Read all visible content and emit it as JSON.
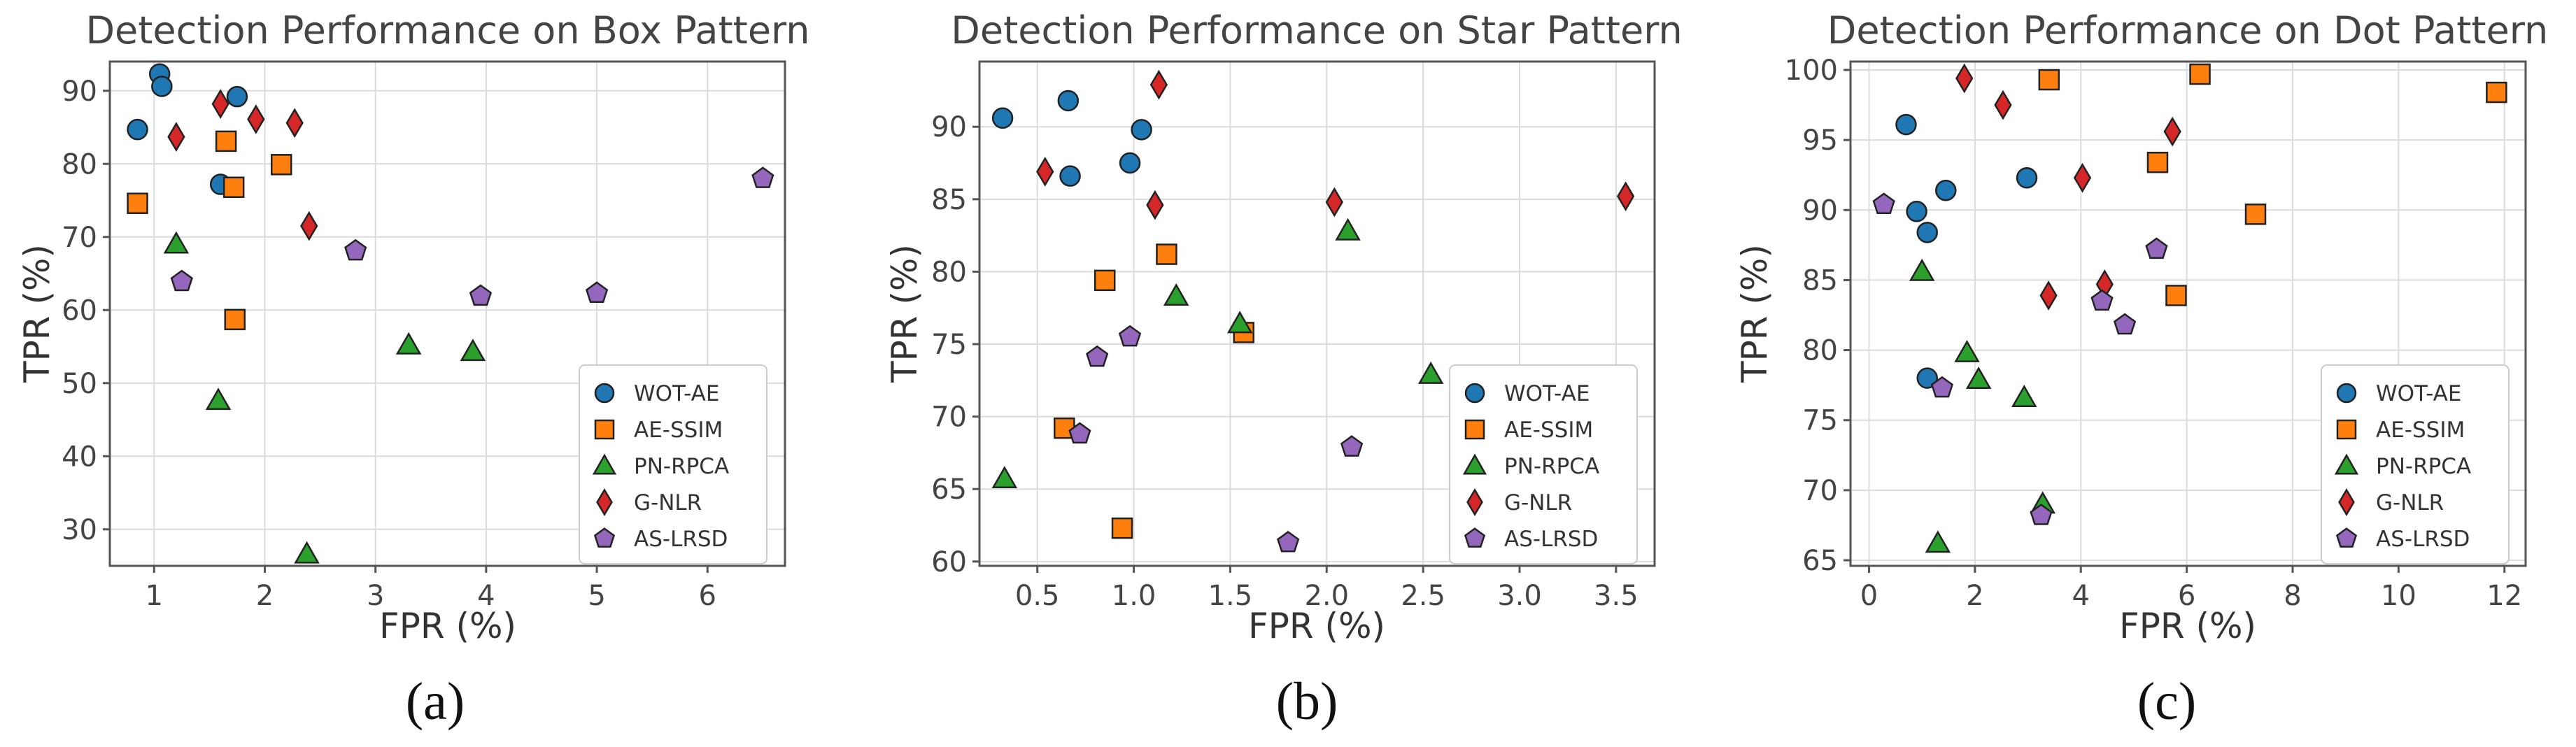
{
  "chart_data": [
    {
      "type": "scatter",
      "title": "Detection Performance on Box Pattern",
      "xlabel": "FPR (%)",
      "ylabel": "TPR (%)",
      "caption": "(a)",
      "xlim": [
        0.6,
        6.7
      ],
      "ylim": [
        25,
        94
      ],
      "xticks": [
        1,
        2,
        3,
        4,
        5,
        6
      ],
      "xtick_labels": [
        "1",
        "2",
        "3",
        "4",
        "5",
        "6"
      ],
      "yticks": [
        30,
        40,
        50,
        60,
        70,
        80,
        90
      ],
      "ytick_labels": [
        "30",
        "40",
        "50",
        "60",
        "70",
        "80",
        "90"
      ],
      "grid": true,
      "legend_position": "lower right",
      "series": [
        {
          "name": "WOT-AE",
          "color": "#1f77b4",
          "marker": "circle",
          "points": [
            [
              0.85,
              84.7
            ],
            [
              1.05,
              92.3
            ],
            [
              1.07,
              90.6
            ],
            [
              1.6,
              77.2
            ],
            [
              1.75,
              89.2
            ]
          ]
        },
        {
          "name": "AE-SSIM",
          "color": "#ff7f0e",
          "marker": "square",
          "points": [
            [
              0.85,
              74.6
            ],
            [
              1.65,
              83.1
            ],
            [
              1.72,
              76.8
            ],
            [
              2.15,
              79.9
            ],
            [
              1.73,
              58.7
            ]
          ]
        },
        {
          "name": "PN-RPCA",
          "color": "#2ca02c",
          "marker": "triangle",
          "points": [
            [
              1.2,
              69.0
            ],
            [
              1.58,
              47.6
            ],
            [
              2.38,
              26.6
            ],
            [
              3.3,
              55.2
            ],
            [
              3.88,
              54.3
            ]
          ]
        },
        {
          "name": "G-NLR",
          "color": "#d62728",
          "marker": "diamond",
          "points": [
            [
              1.2,
              83.7
            ],
            [
              1.6,
              88.2
            ],
            [
              1.92,
              86.1
            ],
            [
              2.27,
              85.6
            ],
            [
              2.4,
              71.5
            ]
          ]
        },
        {
          "name": "AS-LRSD",
          "color": "#9467bd",
          "marker": "pentagon",
          "points": [
            [
              1.25,
              63.9
            ],
            [
              2.82,
              68.1
            ],
            [
              3.95,
              61.9
            ],
            [
              5.0,
              62.3
            ],
            [
              6.5,
              78.0
            ]
          ]
        }
      ]
    },
    {
      "type": "scatter",
      "title": "Detection Performance on Star Pattern",
      "xlabel": "FPR (%)",
      "ylabel": "TPR (%)",
      "caption": "(b)",
      "xlim": [
        0.2,
        3.7
      ],
      "ylim": [
        59.7,
        94.5
      ],
      "xticks": [
        0.5,
        1.0,
        1.5,
        2.0,
        2.5,
        3.0,
        3.5
      ],
      "xtick_labels": [
        "0.5",
        "1.0",
        "1.5",
        "2.0",
        "2.5",
        "3.0",
        "3.5"
      ],
      "yticks": [
        60,
        65,
        70,
        75,
        80,
        85,
        90
      ],
      "ytick_labels": [
        "60",
        "65",
        "70",
        "75",
        "80",
        "85",
        "90"
      ],
      "grid": true,
      "legend_position": "lower right",
      "series": [
        {
          "name": "WOT-AE",
          "color": "#1f77b4",
          "marker": "circle",
          "points": [
            [
              0.32,
              90.6
            ],
            [
              0.66,
              91.8
            ],
            [
              0.67,
              86.6
            ],
            [
              0.98,
              87.5
            ],
            [
              1.04,
              89.8
            ]
          ]
        },
        {
          "name": "AE-SSIM",
          "color": "#ff7f0e",
          "marker": "square",
          "points": [
            [
              0.64,
              69.2
            ],
            [
              0.85,
              79.4
            ],
            [
              0.94,
              62.3
            ],
            [
              1.17,
              81.2
            ],
            [
              1.57,
              75.8
            ]
          ]
        },
        {
          "name": "PN-RPCA",
          "color": "#2ca02c",
          "marker": "triangle",
          "points": [
            [
              0.33,
              65.7
            ],
            [
              1.22,
              78.3
            ],
            [
              1.55,
              76.4
            ],
            [
              2.11,
              82.8
            ],
            [
              2.54,
              72.9
            ]
          ]
        },
        {
          "name": "G-NLR",
          "color": "#d62728",
          "marker": "diamond",
          "points": [
            [
              0.54,
              86.9
            ],
            [
              1.11,
              84.6
            ],
            [
              1.13,
              92.9
            ],
            [
              2.04,
              84.8
            ],
            [
              3.55,
              85.2
            ]
          ]
        },
        {
          "name": "AS-LRSD",
          "color": "#9467bd",
          "marker": "pentagon",
          "points": [
            [
              0.72,
              68.8
            ],
            [
              0.81,
              74.1
            ],
            [
              0.98,
              75.5
            ],
            [
              1.8,
              61.3
            ],
            [
              2.13,
              67.9
            ]
          ]
        }
      ]
    },
    {
      "type": "scatter",
      "title": "Detection Performance on Dot Pattern",
      "xlabel": "FPR (%)",
      "ylabel": "TPR (%)",
      "caption": "(c)",
      "xlim": [
        -0.35,
        12.4
      ],
      "ylim": [
        64.6,
        100.6
      ],
      "xticks": [
        0,
        2,
        4,
        6,
        8,
        10,
        12
      ],
      "xtick_labels": [
        "0",
        "2",
        "4",
        "6",
        "8",
        "10",
        "12"
      ],
      "yticks": [
        65,
        70,
        75,
        80,
        85,
        90,
        95,
        100
      ],
      "ytick_labels": [
        "65",
        "70",
        "75",
        "80",
        "85",
        "90",
        "95",
        "100"
      ],
      "grid": true,
      "legend_position": "lower right",
      "series": [
        {
          "name": "WOT-AE",
          "color": "#1f77b4",
          "marker": "circle",
          "points": [
            [
              0.7,
              96.1
            ],
            [
              0.9,
              89.9
            ],
            [
              1.1,
              88.4
            ],
            [
              1.1,
              78.0
            ],
            [
              1.45,
              91.4
            ],
            [
              2.98,
              92.3
            ]
          ]
        },
        {
          "name": "AE-SSIM",
          "color": "#ff7f0e",
          "marker": "square",
          "points": [
            [
              3.4,
              99.3
            ],
            [
              5.45,
              93.4
            ],
            [
              5.8,
              83.9
            ],
            [
              6.25,
              99.7
            ],
            [
              7.3,
              89.7
            ],
            [
              11.85,
              98.4
            ]
          ]
        },
        {
          "name": "PN-RPCA",
          "color": "#2ca02c",
          "marker": "triangle",
          "points": [
            [
              1.0,
              85.6
            ],
            [
              1.85,
              79.8
            ],
            [
              2.07,
              77.9
            ],
            [
              2.93,
              76.6
            ],
            [
              3.28,
              69.0
            ],
            [
              1.3,
              66.2
            ]
          ]
        },
        {
          "name": "G-NLR",
          "color": "#d62728",
          "marker": "diamond",
          "points": [
            [
              1.8,
              99.4
            ],
            [
              2.53,
              97.5
            ],
            [
              3.39,
              83.9
            ],
            [
              4.03,
              92.3
            ],
            [
              4.45,
              84.7
            ],
            [
              5.73,
              95.6
            ]
          ]
        },
        {
          "name": "AS-LRSD",
          "color": "#9467bd",
          "marker": "pentagon",
          "points": [
            [
              0.28,
              90.4
            ],
            [
              1.38,
              77.3
            ],
            [
              3.25,
              68.2
            ],
            [
              4.4,
              83.5
            ],
            [
              4.83,
              81.8
            ],
            [
              5.43,
              87.2
            ]
          ]
        }
      ]
    }
  ]
}
